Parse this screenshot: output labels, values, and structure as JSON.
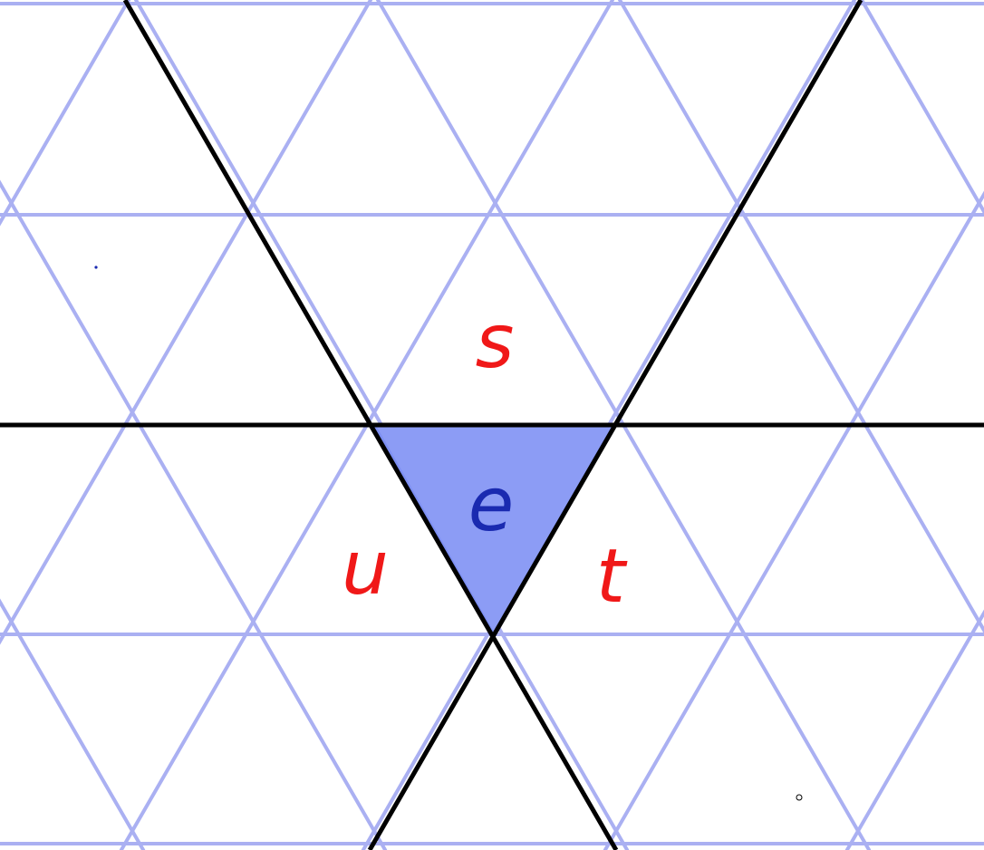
{
  "diagram": {
    "colors": {
      "background": "#ffffff",
      "grid": "#aab0f2",
      "mirror": "#000000",
      "region_fill": "#8c9cf5",
      "generator_label": "#f01818",
      "element_label": "#1a2ab0"
    },
    "labels": {
      "s": "s",
      "t": "t",
      "u": "u",
      "e": "e"
    }
  }
}
